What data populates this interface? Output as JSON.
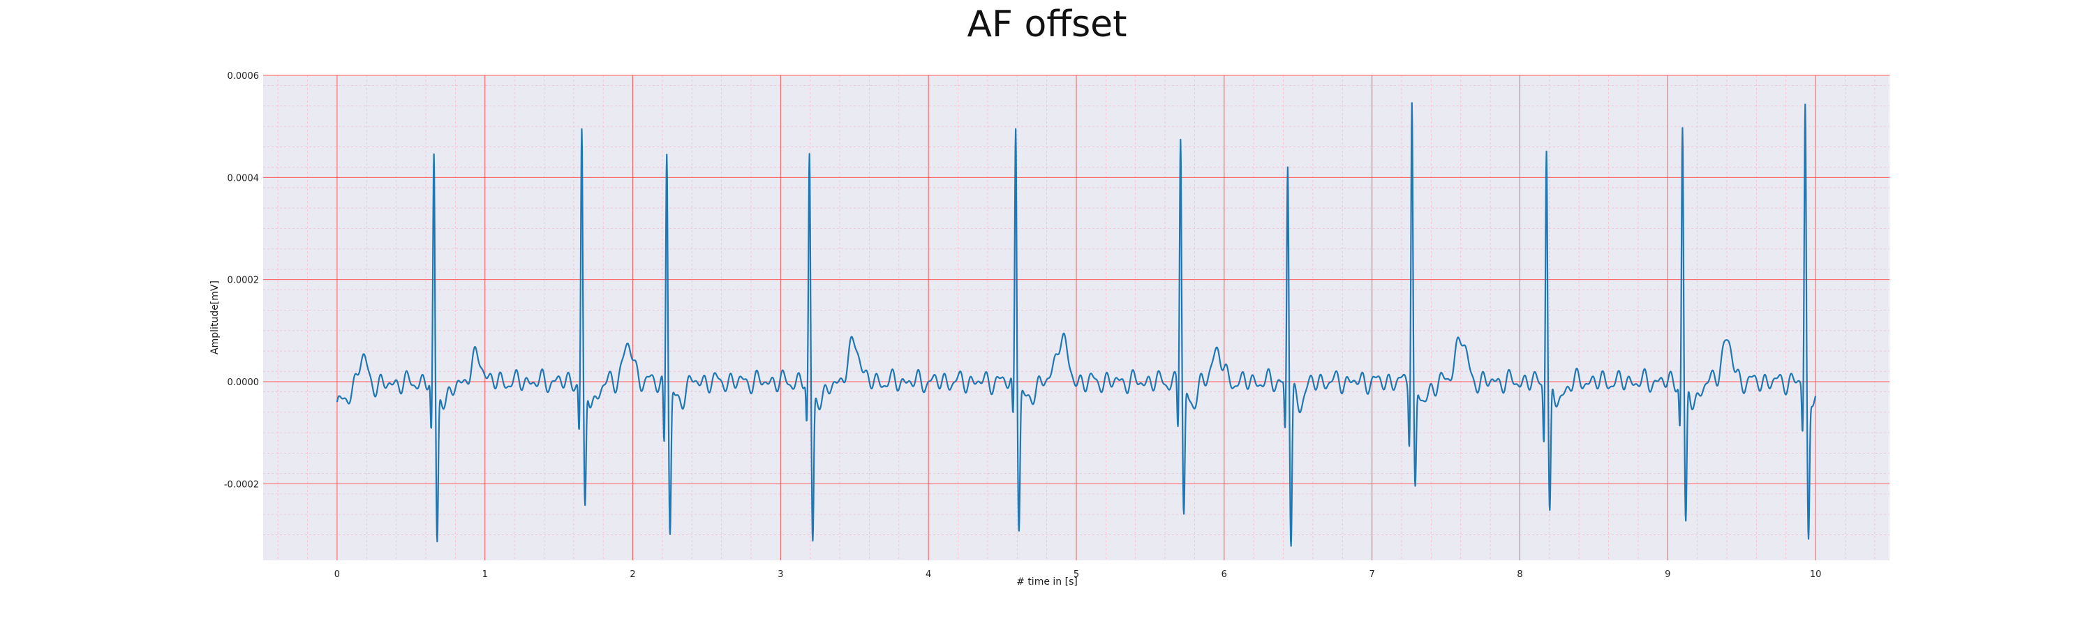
{
  "chart_data": {
    "type": "line",
    "title": "AF offset",
    "xlabel": "# time in [s]",
    "ylabel": "Amplitude[mV]",
    "xlim": [
      -0.5,
      10.5
    ],
    "ylim": [
      -0.00035,
      0.0006
    ],
    "x_ticks": [
      0,
      1,
      2,
      3,
      4,
      5,
      6,
      7,
      8,
      9,
      10
    ],
    "x_tick_labels": [
      "0",
      "1",
      "2",
      "3",
      "4",
      "5",
      "6",
      "7",
      "8",
      "9",
      "10"
    ],
    "y_ticks": [
      -0.0002,
      0.0,
      0.0002,
      0.0004,
      0.0006
    ],
    "y_tick_labels": [
      "-0.0002",
      "0.0000",
      "0.0002",
      "0.0004",
      "0.0006"
    ],
    "grid": true,
    "minor_grid": true,
    "legend": "none",
    "colors": {
      "plot_background": "#eaeaf2",
      "major_grid": "#ff5a5a",
      "minor_grid": "#ffb8c8",
      "line": "#1f77b4"
    },
    "series": [
      {
        "beats": [
          {
            "t": 0.655,
            "r": 0.00044,
            "s": -0.0003,
            "q": -0.00011
          },
          {
            "t": 1.655,
            "r": 0.00049,
            "s": -0.00025,
            "q": -0.0001
          },
          {
            "t": 2.23,
            "r": 0.00046,
            "s": -0.00029,
            "q": -0.00013
          },
          {
            "t": 3.195,
            "r": 0.00044,
            "s": -0.0003,
            "q": -9e-05
          },
          {
            "t": 4.59,
            "r": 0.00051,
            "s": -0.00027,
            "q": -8e-05
          },
          {
            "t": 5.705,
            "r": 0.00049,
            "s": -0.00026,
            "q": -9e-05
          },
          {
            "t": 6.43,
            "r": 0.00043,
            "s": -0.00031,
            "q": -0.0001
          },
          {
            "t": 7.27,
            "r": 0.00056,
            "s": -0.00021,
            "q": -0.00011
          },
          {
            "t": 8.18,
            "r": 0.00047,
            "s": -0.00026,
            "q": -0.00011
          },
          {
            "t": 9.1,
            "r": 0.0005,
            "s": -0.00028,
            "q": -9e-05
          },
          {
            "t": 9.93,
            "r": 0.00054,
            "s": -0.0003,
            "q": -0.0001
          }
        ],
        "t_waves": [
          {
            "t": 0.17,
            "a": 6e-05
          },
          {
            "t": 0.95,
            "a": 5e-05
          },
          {
            "t": 1.97,
            "a": 7e-05
          },
          {
            "t": 3.5,
            "a": 8e-05
          },
          {
            "t": 4.9,
            "a": 9e-05
          },
          {
            "t": 5.95,
            "a": 6e-05
          },
          {
            "t": 7.6,
            "a": 9e-05
          },
          {
            "t": 9.4,
            "a": 8e-05
          }
        ],
        "x_start": 0.0,
        "x_end": 10.0,
        "baseline_start": -5e-05
      }
    ]
  }
}
